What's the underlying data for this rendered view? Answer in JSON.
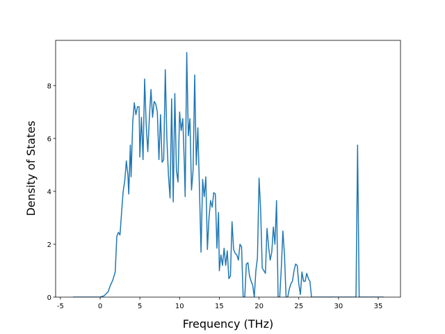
{
  "chart_data": {
    "type": "line",
    "xlabel": "Frequency (THz)",
    "ylabel": "Density of States",
    "color": "#1f77b4",
    "x": [
      -3.4,
      0,
      0.5,
      1,
      1.3,
      1.6,
      1.9,
      2.1,
      2.3,
      2.5,
      2.7,
      2.9,
      3.1,
      3.3,
      3.5,
      3.6,
      3.8,
      3.9,
      4.1,
      4.3,
      4.5,
      4.7,
      4.9,
      5.0,
      5.2,
      5.4,
      5.6,
      5.8,
      6.0,
      6.2,
      6.4,
      6.6,
      6.8,
      7.0,
      7.2,
      7.4,
      7.6,
      7.8,
      8.0,
      8.2,
      8.4,
      8.6,
      8.8,
      9.0,
      9.2,
      9.4,
      9.6,
      9.8,
      10.0,
      10.2,
      10.4,
      10.6,
      10.7,
      10.9,
      11.1,
      11.3,
      11.5,
      11.7,
      11.9,
      12.1,
      12.3,
      12.5,
      12.7,
      12.9,
      13.1,
      13.3,
      13.5,
      13.7,
      13.9,
      14.1,
      14.3,
      14.5,
      14.7,
      14.9,
      15.0,
      15.2,
      15.4,
      15.6,
      15.8,
      16.0,
      16.2,
      16.4,
      16.6,
      16.8,
      17.0,
      17.2,
      17.4,
      17.6,
      17.8,
      18.0,
      18.2,
      18.4,
      18.6,
      18.8,
      19.0,
      19.2,
      19.4,
      19.6,
      19.8,
      20.0,
      20.2,
      20.4,
      20.6,
      20.8,
      21.0,
      21.2,
      21.4,
      21.6,
      21.8,
      22.0,
      22.2,
      22.4,
      22.6,
      22.8,
      23.0,
      23.2,
      23.4,
      23.6,
      23.8,
      24.0,
      24.2,
      24.4,
      24.6,
      24.8,
      25.0,
      25.2,
      25.4,
      25.6,
      25.8,
      26.0,
      26.2,
      26.4,
      26.6,
      32.2,
      32.4,
      32.6,
      35.7
    ],
    "values": [
      0,
      0,
      0.05,
      0.2,
      0.45,
      0.65,
      0.95,
      2.3,
      2.45,
      2.35,
      3.2,
      4.0,
      4.4,
      5.15,
      4.6,
      3.9,
      5.75,
      4.55,
      6.6,
      7.35,
      6.9,
      7.2,
      7.2,
      5.3,
      6.8,
      5.2,
      8.25,
      6.5,
      5.5,
      6.8,
      7.85,
      6.8,
      7.4,
      7.3,
      7.0,
      5.2,
      6.9,
      5.1,
      5.2,
      8.6,
      6.0,
      4.6,
      3.75,
      7.5,
      3.6,
      7.7,
      4.8,
      4.35,
      7.0,
      6.3,
      6.75,
      5.0,
      3.8,
      9.25,
      6.1,
      6.75,
      4.05,
      4.8,
      8.4,
      5.0,
      6.4,
      4.1,
      1.7,
      4.45,
      3.8,
      4.55,
      1.8,
      3.0,
      3.65,
      3.4,
      3.95,
      3.9,
      1.85,
      3.2,
      1.0,
      1.6,
      1.2,
      1.85,
      1.2,
      1.75,
      0.7,
      0.8,
      2.85,
      1.8,
      1.65,
      1.6,
      1.4,
      2.0,
      1.9,
      0,
      0,
      1.25,
      1.3,
      0.8,
      0.6,
      0.45,
      0,
      1.0,
      1.5,
      4.5,
      3.3,
      1.1,
      1.0,
      0.9,
      2.6,
      1.9,
      1.4,
      1.7,
      2.65,
      2.0,
      3.65,
      0,
      0,
      1.1,
      2.5,
      1.6,
      0,
      0,
      0.3,
      0.5,
      0.6,
      1.0,
      1.25,
      1.2,
      0.5,
      0.1,
      0.95,
      0.6,
      0.6,
      0.9,
      0.7,
      0.6,
      0,
      0,
      5.75,
      0,
      0
    ],
    "xlim": [
      -5.6,
      37.8
    ],
    "xticks": [
      -5,
      0,
      5,
      10,
      15,
      20,
      25,
      30,
      35
    ],
    "ylim": [
      0,
      9.71
    ],
    "yticks": [
      0,
      2,
      4,
      6,
      8
    ]
  }
}
